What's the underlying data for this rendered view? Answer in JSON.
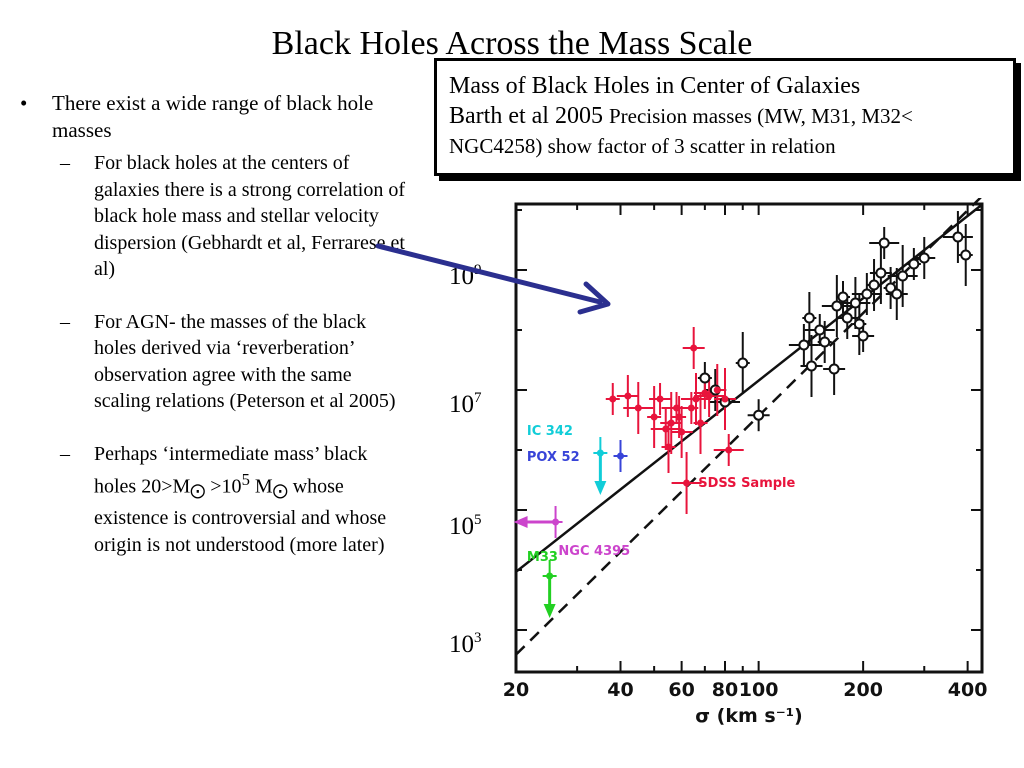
{
  "title": "Black Holes Across the Mass Scale",
  "bullets": {
    "main": "There exist a wide range of black hole masses",
    "sub1": "For black holes at the centers of galaxies there is a strong correlation of black hole mass and stellar velocity dispersion (Gebhardt et al, Ferrarese et al)",
    "sub2": "For AGN- the masses of the black holes derived via ‘reverberation’ observation agree with the same scaling relations (Peterson et al 2005)",
    "sub3_a": "Perhaps ‘intermediate mass’ black holes 20>M",
    "sub3_b": " >10",
    "sub3_exp": "5",
    "sub3_c": " M",
    "sub3_d": " whose existence is controversial and whose origin is not understood (more later)",
    "sun_symbol": "⨀",
    "bullet_mark": "•",
    "dash_mark": "–"
  },
  "callout": {
    "line1": "Mass of Black Holes in Center of Galaxies",
    "line2_ref": "Barth et al 2005 ",
    "line2_small": "Precision masses (MW, M31, M32<",
    "line3": "NGC4258) show factor of 3 scatter in relation"
  },
  "mass_labels": [
    {
      "base": "10",
      "exp": "9"
    },
    {
      "base": "10",
      "exp": "7"
    },
    {
      "base": "10",
      "exp": "5"
    },
    {
      "base": "10",
      "exp": "3"
    }
  ],
  "chart_data": {
    "type": "scatter",
    "xlabel": "σ (km s⁻¹)",
    "x_scale": "log",
    "y_scale": "log",
    "xlim": [
      20,
      440
    ],
    "ylim": [
      2.3,
      10.1
    ],
    "x_ticks": [
      20,
      40,
      60,
      80,
      100,
      200,
      400
    ],
    "x_tick_labels": [
      "20",
      "40",
      "60",
      "80",
      "100",
      "200",
      "400"
    ],
    "fit_lines": [
      {
        "style": "solid",
        "points": [
          [
            20,
            3.97
          ],
          [
            440,
            10.09
          ]
        ]
      },
      {
        "style": "dashed",
        "points": [
          [
            20,
            2.59
          ],
          [
            440,
            10.23
          ]
        ]
      }
    ],
    "series": [
      {
        "name": "",
        "color": "#111111",
        "points": [
          [
            70,
            7.2
          ],
          [
            75,
            7.0
          ],
          [
            80,
            6.8
          ],
          [
            90,
            7.45
          ],
          [
            100,
            6.58
          ],
          [
            135,
            7.75
          ],
          [
            140,
            8.2
          ],
          [
            142,
            7.4
          ],
          [
            150,
            8.0
          ],
          [
            155,
            7.8
          ],
          [
            165,
            7.35
          ],
          [
            168,
            8.4
          ],
          [
            175,
            8.55
          ],
          [
            180,
            8.2
          ],
          [
            190,
            8.45
          ],
          [
            195,
            8.1
          ],
          [
            200,
            7.9
          ],
          [
            205,
            8.6
          ],
          [
            215,
            8.75
          ],
          [
            225,
            8.95
          ],
          [
            230,
            9.45
          ],
          [
            240,
            8.7
          ],
          [
            250,
            8.6
          ],
          [
            260,
            8.9
          ],
          [
            280,
            9.1
          ],
          [
            300,
            9.2
          ],
          [
            375,
            9.55
          ],
          [
            395,
            9.25
          ]
        ]
      },
      {
        "name": "SDSS Sample",
        "color": "#e8143c",
        "points": [
          [
            38,
            6.85
          ],
          [
            42,
            6.9
          ],
          [
            45,
            6.7
          ],
          [
            50,
            6.55
          ],
          [
            52,
            6.85
          ],
          [
            54,
            6.35
          ],
          [
            55,
            6.05
          ],
          [
            56,
            6.45
          ],
          [
            58,
            6.7
          ],
          [
            59,
            6.55
          ],
          [
            60,
            6.3
          ],
          [
            62,
            5.45
          ],
          [
            64,
            6.7
          ],
          [
            65,
            7.7
          ],
          [
            66,
            6.85
          ],
          [
            68,
            6.45
          ],
          [
            70,
            6.95
          ],
          [
            72,
            6.9
          ],
          [
            76,
            7.0
          ],
          [
            80,
            6.85
          ],
          [
            82,
            6.0
          ]
        ]
      },
      {
        "name": "IC 342",
        "color": "#11cdd8",
        "points": [
          [
            35,
            5.95
          ]
        ]
      },
      {
        "name": "POX 52",
        "color": "#3844d8",
        "points": [
          [
            40,
            5.9
          ]
        ]
      },
      {
        "name": "NGC 4395",
        "color": "#cc44cc",
        "points": [
          [
            26,
            4.8
          ]
        ]
      },
      {
        "name": "M33",
        "color": "#22d022",
        "points": [
          [
            25,
            3.9
          ]
        ]
      }
    ]
  }
}
